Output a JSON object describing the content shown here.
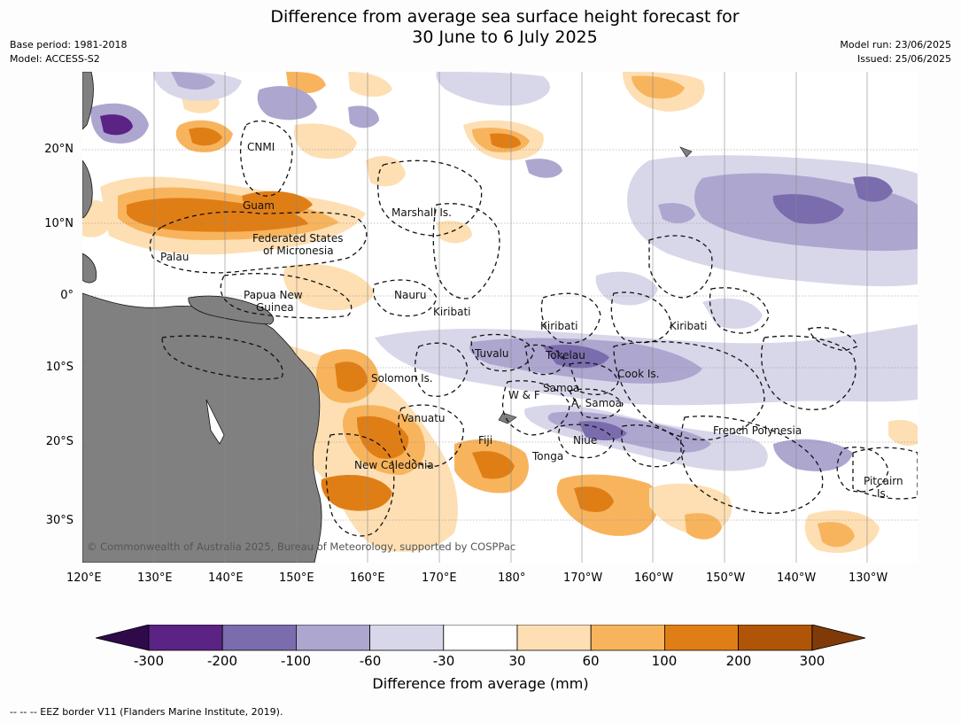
{
  "title_line1": "Difference from average sea surface height forecast for",
  "title_line2": "30 June to 6 July 2025",
  "base_period": "Base period: 1981-2018",
  "model": "Model: ACCESS-S2",
  "model_run": "Model run: 23/06/2025",
  "issued": "Issued: 25/06/2025",
  "lon_ticks": [
    "120°E",
    "130°E",
    "140°E",
    "150°E",
    "160°E",
    "170°E",
    "180°",
    "170°W",
    "160°W",
    "150°W",
    "140°W",
    "130°W"
  ],
  "lat_ticks": [
    "20°N",
    "10°N",
    "0°",
    "10°S",
    "20°S",
    "30°S"
  ],
  "region_labels": {
    "cnmi": "CNMI",
    "guam": "Guam",
    "marshall": "Marshall Is.",
    "fsm_1": "Federated States",
    "fsm_2": "of Micronesia",
    "palau": "Palau",
    "png_1": "Papua New",
    "png_2": "Guinea",
    "nauru": "Nauru",
    "kiribati_w": "Kiribati",
    "kiribati_c": "Kiribati",
    "kiribati_e": "Kiribati",
    "tuvalu": "Tuvalu",
    "tokelau": "Tokelau",
    "cook": "Cook Is.",
    "solomon": "Solomon Is.",
    "wf": "W & F",
    "samoa": "Samoa",
    "asamoa": "A. Samoa",
    "vanuatu": "Vanuatu",
    "fiji": "Fiji",
    "niue": "Niue",
    "frpoly": "French Polynesia",
    "tonga": "Tonga",
    "newcal": "New Caledonia",
    "pitcairn_1": "Pitcairn",
    "pitcairn_2": "Is."
  },
  "copyright": "© Commonwealth of Australia 2025, Bureau of Meteorology, supported by COSPPac",
  "colorbar": {
    "ticks": [
      "-300",
      "-200",
      "-100",
      "-60",
      "-30",
      "30",
      "60",
      "100",
      "200",
      "300"
    ],
    "colors": [
      "#5a2384",
      "#7b6cae",
      "#ada6cf",
      "#d8d7ea",
      "#ffffff",
      "#fddfb3",
      "#f8b45d",
      "#e07e16",
      "#b05507"
    ],
    "under_color": "#2f0a4b",
    "over_color": "#7f3a08",
    "label": "Difference from average (mm)"
  },
  "footer": "--  --  -- EEZ border V11 (Flanders Marine Institute, 2019).",
  "land_color": "#808080"
}
